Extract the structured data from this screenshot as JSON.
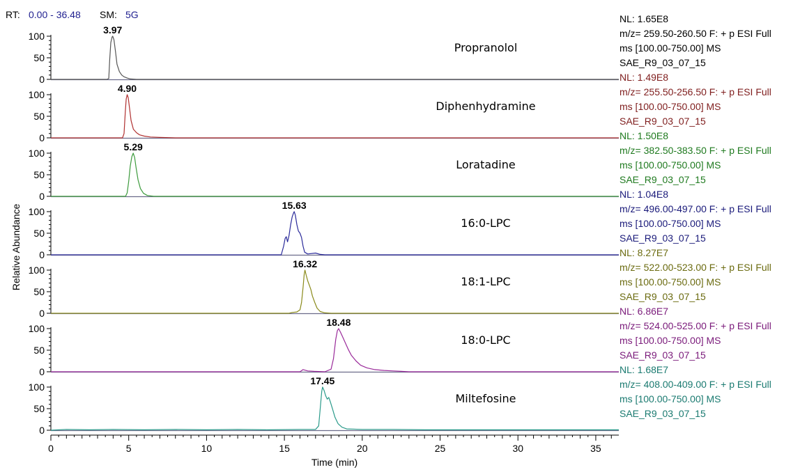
{
  "header": {
    "rt_label": "RT:",
    "rt_value": "0.00 - 36.48",
    "sm_label": "SM:",
    "sm_value": "5G",
    "label_color": "#000000",
    "value_color": "#1f1f8f"
  },
  "chart_data": {
    "type": "line",
    "xlabel": "Time (min)",
    "ylabel": "Relative Abundance",
    "xlim": [
      0,
      36.48
    ],
    "ylim": [
      0,
      100
    ],
    "x_ticks": [
      0,
      5,
      10,
      15,
      20,
      25,
      30,
      35
    ],
    "y_ticks": [
      0,
      50,
      100
    ],
    "series": [
      {
        "name": "Propranolol",
        "color": "#555555",
        "peak_label": "3.97",
        "nl": "NL: 1.65E8",
        "mz": "m/z= 259.50-260.50 F: + p ESI Full",
        "ms": "ms [100.00-750.00]  MS",
        "file": "SAE_R9_03_07_15",
        "info_color": "#000000",
        "points": [
          [
            0,
            0
          ],
          [
            3.6,
            0
          ],
          [
            3.72,
            2
          ],
          [
            3.78,
            45
          ],
          [
            3.85,
            85
          ],
          [
            3.93,
            98
          ],
          [
            3.97,
            100
          ],
          [
            4.05,
            92
          ],
          [
            4.15,
            65
          ],
          [
            4.25,
            35
          ],
          [
            4.4,
            18
          ],
          [
            4.55,
            10
          ],
          [
            4.7,
            6
          ],
          [
            4.9,
            3
          ],
          [
            5.1,
            1
          ],
          [
            5.5,
            0
          ],
          [
            36.48,
            0
          ]
        ]
      },
      {
        "name": "Diphenhydramine",
        "color": "#b03030",
        "peak_label": "4.90",
        "nl": "NL: 1.49E8",
        "mz": "m/z= 255.50-256.50 F: + p ESI Full",
        "ms": "ms [100.00-750.00]  MS",
        "file": "SAE_R9_03_07_15",
        "info_color": "#7f1d1d",
        "points": [
          [
            0,
            0
          ],
          [
            4.6,
            0
          ],
          [
            4.7,
            10
          ],
          [
            4.78,
            60
          ],
          [
            4.84,
            90
          ],
          [
            4.9,
            100
          ],
          [
            4.97,
            93
          ],
          [
            5.05,
            70
          ],
          [
            5.15,
            40
          ],
          [
            5.3,
            20
          ],
          [
            5.5,
            12
          ],
          [
            5.7,
            7
          ],
          [
            6.0,
            4
          ],
          [
            6.4,
            2
          ],
          [
            7.0,
            1
          ],
          [
            8.0,
            0
          ],
          [
            36.48,
            0
          ]
        ]
      },
      {
        "name": "Loratadine",
        "color": "#3c9a3c",
        "peak_label": "5.29",
        "nl": "NL: 1.50E8",
        "mz": "m/z= 382.50-383.50 F: + p ESI Full",
        "ms": "ms [100.00-750.00]  MS",
        "file": "SAE_R9_03_07_15",
        "info_color": "#1f7a1f",
        "points": [
          [
            0,
            0
          ],
          [
            4.8,
            0
          ],
          [
            4.9,
            8
          ],
          [
            5.0,
            35
          ],
          [
            5.1,
            70
          ],
          [
            5.2,
            92
          ],
          [
            5.29,
            100
          ],
          [
            5.38,
            90
          ],
          [
            5.48,
            65
          ],
          [
            5.6,
            38
          ],
          [
            5.75,
            18
          ],
          [
            5.95,
            7
          ],
          [
            6.2,
            2
          ],
          [
            6.6,
            0
          ],
          [
            36.48,
            0
          ]
        ]
      },
      {
        "name": "16:0-LPC",
        "color": "#2a2a9a",
        "peak_label": "15.63",
        "nl": "NL: 1.04E8",
        "mz": "m/z= 496.00-497.00 F: + p ESI Full",
        "ms": "ms [100.00-750.00]  MS",
        "file": "SAE_R9_03_07_15",
        "info_color": "#1a1a7a",
        "points": [
          [
            0,
            0
          ],
          [
            14.8,
            0
          ],
          [
            14.95,
            20
          ],
          [
            15.05,
            38
          ],
          [
            15.12,
            42
          ],
          [
            15.2,
            30
          ],
          [
            15.3,
            45
          ],
          [
            15.4,
            70
          ],
          [
            15.5,
            88
          ],
          [
            15.6,
            98
          ],
          [
            15.63,
            100
          ],
          [
            15.7,
            92
          ],
          [
            15.8,
            70
          ],
          [
            15.9,
            55
          ],
          [
            16.0,
            50
          ],
          [
            16.1,
            40
          ],
          [
            16.2,
            20
          ],
          [
            16.3,
            6
          ],
          [
            16.5,
            2
          ],
          [
            17.0,
            4
          ],
          [
            17.3,
            1
          ],
          [
            17.6,
            0
          ],
          [
            36.48,
            0
          ]
        ]
      },
      {
        "name": "18:1-LPC",
        "color": "#8a8a1a",
        "peak_label": "16.32",
        "nl": "NL: 8.27E7",
        "mz": "m/z= 522.00-523.00 F: + p ESI Full",
        "ms": "ms [100.00-750.00]  MS",
        "file": "SAE_R9_03_07_15",
        "info_color": "#6b6b10",
        "points": [
          [
            0,
            0
          ],
          [
            15.3,
            0
          ],
          [
            15.5,
            2
          ],
          [
            15.8,
            3
          ],
          [
            16.0,
            8
          ],
          [
            16.1,
            25
          ],
          [
            16.2,
            60
          ],
          [
            16.27,
            90
          ],
          [
            16.32,
            100
          ],
          [
            16.4,
            88
          ],
          [
            16.5,
            75
          ],
          [
            16.6,
            65
          ],
          [
            16.7,
            55
          ],
          [
            16.8,
            40
          ],
          [
            16.95,
            25
          ],
          [
            17.1,
            12
          ],
          [
            17.3,
            4
          ],
          [
            17.6,
            1
          ],
          [
            18.0,
            0
          ],
          [
            36.48,
            0
          ]
        ]
      },
      {
        "name": "18:0-LPC",
        "color": "#9a2a9a",
        "peak_label": "18.48",
        "nl": "NL: 6.86E7",
        "mz": "m/z= 524.00-525.00 F: + p ESI Full",
        "ms": "ms [100.00-750.00]  MS",
        "file": "SAE_R9_03_07_15",
        "info_color": "#7a1a7a",
        "points": [
          [
            0,
            0
          ],
          [
            16.0,
            0
          ],
          [
            16.2,
            5
          ],
          [
            16.5,
            2
          ],
          [
            16.9,
            1
          ],
          [
            17.6,
            0
          ],
          [
            18.0,
            6
          ],
          [
            18.15,
            30
          ],
          [
            18.3,
            75
          ],
          [
            18.4,
            95
          ],
          [
            18.48,
            100
          ],
          [
            18.6,
            92
          ],
          [
            18.75,
            80
          ],
          [
            18.9,
            68
          ],
          [
            19.1,
            52
          ],
          [
            19.3,
            38
          ],
          [
            19.6,
            25
          ],
          [
            19.9,
            15
          ],
          [
            20.3,
            9
          ],
          [
            20.8,
            5
          ],
          [
            21.4,
            3
          ],
          [
            22.0,
            2
          ],
          [
            22.5,
            1
          ],
          [
            23.0,
            0
          ],
          [
            36.48,
            0
          ]
        ]
      },
      {
        "name": "Miltefosine",
        "color": "#2a9a8a",
        "peak_label": "17.45",
        "nl": "NL: 1.68E7",
        "mz": "m/z= 408.00-409.00 F: + p ESI Full",
        "ms": "ms [100.00-750.00]  MS",
        "file": "SAE_R9_03_07_15",
        "info_color": "#1a7a70",
        "points": [
          [
            0,
            0
          ],
          [
            1.0,
            2
          ],
          [
            2.5,
            1
          ],
          [
            4.0,
            2
          ],
          [
            6.0,
            1
          ],
          [
            8.0,
            2
          ],
          [
            10.0,
            1
          ],
          [
            12.0,
            2
          ],
          [
            14.0,
            1
          ],
          [
            16.0,
            2
          ],
          [
            17.0,
            2
          ],
          [
            17.2,
            10
          ],
          [
            17.3,
            50
          ],
          [
            17.4,
            90
          ],
          [
            17.45,
            100
          ],
          [
            17.55,
            92
          ],
          [
            17.65,
            80
          ],
          [
            17.75,
            72
          ],
          [
            17.85,
            76
          ],
          [
            17.95,
            66
          ],
          [
            18.1,
            48
          ],
          [
            18.25,
            30
          ],
          [
            18.45,
            15
          ],
          [
            18.7,
            7
          ],
          [
            19.0,
            3
          ],
          [
            20.0,
            2
          ],
          [
            22.0,
            2
          ],
          [
            24.0,
            1
          ],
          [
            27.0,
            1
          ],
          [
            30.0,
            1
          ],
          [
            33.0,
            1
          ],
          [
            36.48,
            1
          ]
        ]
      }
    ]
  }
}
